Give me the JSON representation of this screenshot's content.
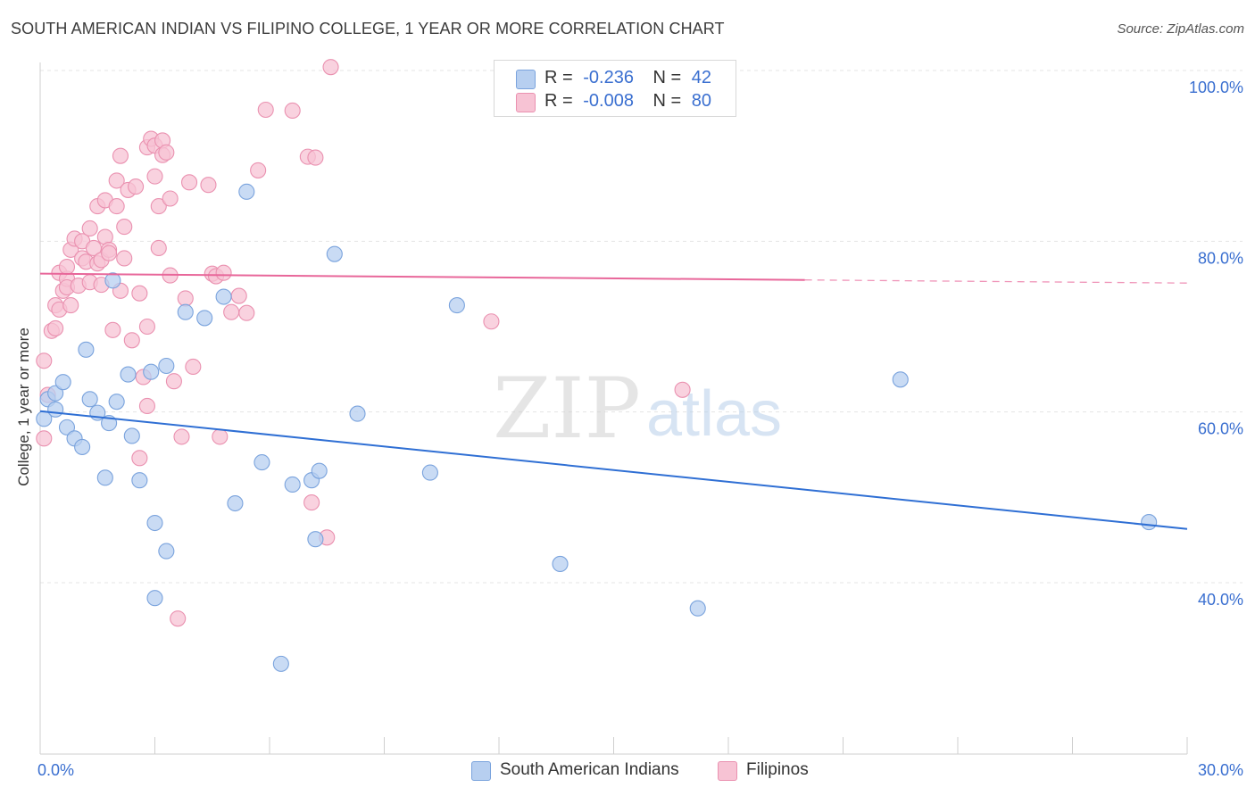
{
  "title": "SOUTH AMERICAN INDIAN VS FILIPINO COLLEGE, 1 YEAR OR MORE CORRELATION CHART",
  "source": "Source: ZipAtlas.com",
  "watermark": {
    "zip": "ZIP",
    "atlas": "atlas"
  },
  "colors": {
    "blue_fill": "#b7cff0",
    "blue_stroke": "#7aa3dd",
    "blue_line": "#2f6fd4",
    "pink_fill": "#f7c3d4",
    "pink_stroke": "#ea91b0",
    "pink_line": "#e8679a",
    "axis_value": "#3a6fd0",
    "grid": "#e4e4e4"
  },
  "legend": [
    {
      "r_label": "R =",
      "r_value": "-0.236",
      "n_label": "N =",
      "n_value": "42",
      "series": "South American Indians"
    },
    {
      "r_label": "R =",
      "r_value": "-0.008",
      "n_label": "N =",
      "n_value": "80",
      "series": "Filipinos"
    }
  ],
  "chart_data": {
    "type": "scatter",
    "title": "SOUTH AMERICAN INDIAN VS FILIPINO COLLEGE, 1 YEAR OR MORE CORRELATION CHART",
    "xlabel": "",
    "ylabel": "College, 1 year or more",
    "xlim": [
      0,
      30
    ],
    "ylim": [
      20,
      102
    ],
    "x_tick_labels": [
      "0.0%",
      "30.0%"
    ],
    "x_ticks": [
      0,
      3,
      6,
      9,
      12,
      15,
      18,
      21,
      24,
      27,
      30
    ],
    "y_ticks": [
      40,
      60,
      80,
      100
    ],
    "y_tick_labels": [
      "40.0%",
      "60.0%",
      "80.0%",
      "100.0%"
    ],
    "grid": true,
    "legend_position": "top-center",
    "series": [
      {
        "name": "South American Indians",
        "r": -0.236,
        "n": 42,
        "trend": {
          "x0": 0,
          "y0": 60.1,
          "x1": 30,
          "y1": 46.3,
          "dashed_from": 30
        },
        "points": [
          [
            0.1,
            59.2
          ],
          [
            0.2,
            61.5
          ],
          [
            0.4,
            62.2
          ],
          [
            0.4,
            60.3
          ],
          [
            0.6,
            63.5
          ],
          [
            0.7,
            58.2
          ],
          [
            0.9,
            56.9
          ],
          [
            1.1,
            55.9
          ],
          [
            1.2,
            67.3
          ],
          [
            1.3,
            61.5
          ],
          [
            1.5,
            59.9
          ],
          [
            1.7,
            52.3
          ],
          [
            1.8,
            58.7
          ],
          [
            1.9,
            75.4
          ],
          [
            2.0,
            61.2
          ],
          [
            2.3,
            64.4
          ],
          [
            2.4,
            57.2
          ],
          [
            2.6,
            52.0
          ],
          [
            2.9,
            64.7
          ],
          [
            3.0,
            47.0
          ],
          [
            3.0,
            38.2
          ],
          [
            3.3,
            65.4
          ],
          [
            3.3,
            43.7
          ],
          [
            3.8,
            71.7
          ],
          [
            4.3,
            71.0
          ],
          [
            4.8,
            73.5
          ],
          [
            5.1,
            49.3
          ],
          [
            5.4,
            85.8
          ],
          [
            5.8,
            54.1
          ],
          [
            6.3,
            30.5
          ],
          [
            6.6,
            51.5
          ],
          [
            7.1,
            52.0
          ],
          [
            7.2,
            45.1
          ],
          [
            7.3,
            53.1
          ],
          [
            7.7,
            78.5
          ],
          [
            8.3,
            59.8
          ],
          [
            10.2,
            52.9
          ],
          [
            10.9,
            72.5
          ],
          [
            13.6,
            42.2
          ],
          [
            17.2,
            37.0
          ],
          [
            22.5,
            63.8
          ],
          [
            29.0,
            47.1
          ]
        ]
      },
      {
        "name": "Filipinos",
        "r": -0.008,
        "n": 80,
        "trend": {
          "x0": 0,
          "y0": 76.2,
          "x1": 30,
          "y1": 75.1,
          "dashed_from": 20
        },
        "points": [
          [
            0.1,
            56.9
          ],
          [
            0.1,
            66.0
          ],
          [
            0.2,
            62.0
          ],
          [
            0.3,
            69.5
          ],
          [
            0.4,
            69.8
          ],
          [
            0.4,
            72.5
          ],
          [
            0.5,
            72.0
          ],
          [
            0.5,
            76.3
          ],
          [
            0.6,
            74.2
          ],
          [
            0.7,
            75.6
          ],
          [
            0.7,
            74.6
          ],
          [
            0.7,
            77.0
          ],
          [
            0.8,
            79.0
          ],
          [
            0.8,
            72.5
          ],
          [
            0.9,
            80.3
          ],
          [
            1.0,
            74.8
          ],
          [
            1.1,
            78.0
          ],
          [
            1.1,
            80.0
          ],
          [
            1.2,
            77.6
          ],
          [
            1.3,
            81.5
          ],
          [
            1.3,
            75.2
          ],
          [
            1.4,
            79.2
          ],
          [
            1.5,
            77.4
          ],
          [
            1.5,
            84.1
          ],
          [
            1.6,
            77.8
          ],
          [
            1.6,
            74.9
          ],
          [
            1.7,
            84.8
          ],
          [
            1.7,
            80.5
          ],
          [
            1.8,
            79.0
          ],
          [
            1.8,
            78.6
          ],
          [
            1.9,
            69.6
          ],
          [
            2.0,
            84.1
          ],
          [
            2.0,
            87.1
          ],
          [
            2.1,
            90.0
          ],
          [
            2.1,
            74.2
          ],
          [
            2.2,
            78.0
          ],
          [
            2.2,
            81.7
          ],
          [
            2.3,
            86.0
          ],
          [
            2.4,
            68.4
          ],
          [
            2.5,
            86.4
          ],
          [
            2.6,
            73.9
          ],
          [
            2.6,
            54.6
          ],
          [
            2.7,
            64.1
          ],
          [
            2.8,
            70.0
          ],
          [
            2.8,
            60.7
          ],
          [
            2.8,
            91.0
          ],
          [
            2.9,
            92.0
          ],
          [
            3.0,
            91.2
          ],
          [
            3.0,
            87.6
          ],
          [
            3.1,
            79.2
          ],
          [
            3.1,
            84.1
          ],
          [
            3.2,
            90.1
          ],
          [
            3.2,
            91.8
          ],
          [
            3.3,
            90.4
          ],
          [
            3.4,
            76.0
          ],
          [
            3.4,
            85.0
          ],
          [
            3.5,
            63.6
          ],
          [
            3.6,
            35.8
          ],
          [
            3.7,
            57.1
          ],
          [
            3.8,
            73.3
          ],
          [
            3.9,
            86.9
          ],
          [
            4.0,
            65.3
          ],
          [
            4.4,
            86.6
          ],
          [
            4.5,
            76.2
          ],
          [
            4.6,
            75.9
          ],
          [
            4.7,
            57.1
          ],
          [
            4.8,
            76.3
          ],
          [
            5.0,
            71.7
          ],
          [
            5.2,
            73.6
          ],
          [
            5.4,
            71.6
          ],
          [
            5.7,
            88.3
          ],
          [
            5.9,
            95.4
          ],
          [
            6.6,
            95.3
          ],
          [
            7.1,
            49.4
          ],
          [
            7.0,
            89.9
          ],
          [
            7.2,
            89.8
          ],
          [
            7.5,
            45.3
          ],
          [
            7.6,
            100.4
          ],
          [
            11.8,
            70.6
          ],
          [
            16.8,
            62.6
          ]
        ]
      }
    ]
  }
}
